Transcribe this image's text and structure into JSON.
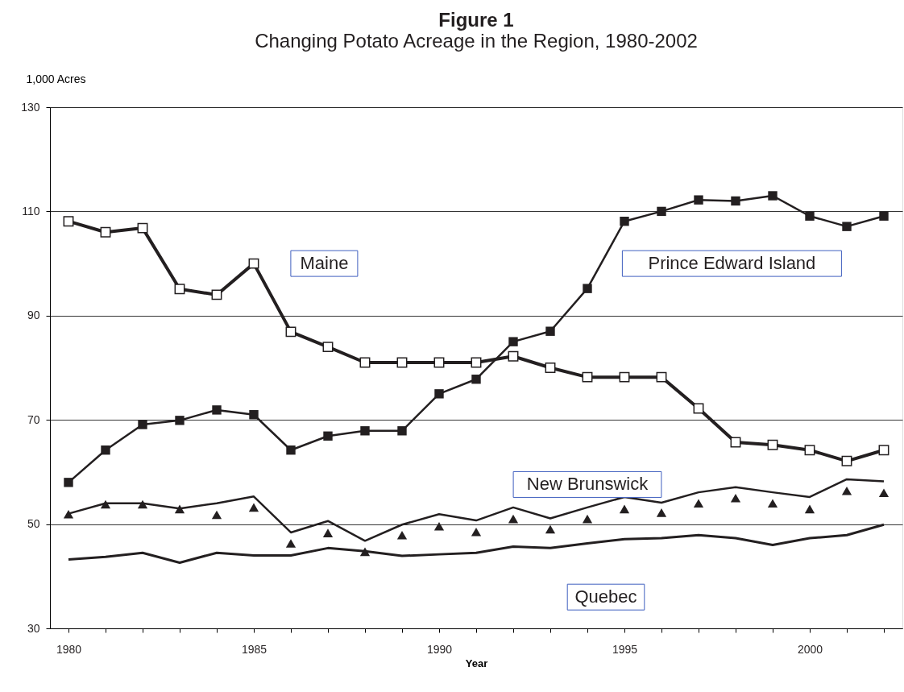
{
  "chart_data": {
    "type": "line",
    "title": "Figure 1",
    "subtitle": "Changing Potato Acreage in the Region, 1980-2002",
    "xlabel": "Year",
    "ylabel": "1,000 Acres",
    "categories": [
      "1980",
      null,
      null,
      null,
      null,
      "1985",
      null,
      null,
      null,
      null,
      "1990",
      null,
      null,
      null,
      null,
      "1995",
      null,
      null,
      null,
      null,
      "2000",
      null,
      null
    ],
    "ylim": [
      30,
      130
    ],
    "yticks": [
      30,
      50,
      70,
      90,
      110,
      130
    ],
    "grid": "y",
    "series": [
      {
        "name": "Maine",
        "color": "#231f20",
        "marker": "square",
        "values": [
          108.1,
          106,
          106.8,
          95.1,
          94,
          100,
          86.9,
          84,
          81,
          81,
          81,
          81,
          82.2,
          80,
          78.2,
          78.2,
          78.2,
          72.2,
          65.7,
          65.2,
          64.2,
          62.1,
          64.2
        ]
      },
      {
        "name": "Prince Edward Island",
        "color": "#231f20",
        "marker": "square",
        "values": [
          58,
          64.2,
          69.1,
          69.9,
          71.9,
          71,
          64.2,
          66.9,
          67.9,
          67.9,
          75,
          77.8,
          85,
          87,
          95.2,
          108.1,
          110,
          112.2,
          112,
          113,
          109.1,
          107.1,
          109.1
        ]
      },
      {
        "name": "New Brunswick",
        "color": "#231f20",
        "marker": "none",
        "values": [
          52,
          54,
          54,
          53,
          54,
          55.3,
          48.4,
          50.6,
          46.8,
          49.9,
          51.9,
          50.7,
          53.2,
          51.1,
          53.2,
          55.2,
          54.1,
          56.1,
          57.1,
          56.1,
          55.2,
          58.6,
          58.2
        ]
      },
      {
        "type": "scatter",
        "color": "#231f20",
        "marker": "triangle",
        "values": [
          51.9,
          53.8,
          53.8,
          52.9,
          51.8,
          53.2,
          46.3,
          48.3,
          44.7,
          47.9,
          49.6,
          48.5,
          51,
          49,
          51,
          52.9,
          52.2,
          54,
          55,
          54,
          52.9,
          56.4,
          56
        ]
      },
      {
        "name": "Quebec",
        "color": "#231f20",
        "marker": "none",
        "values": [
          43.2,
          43.7,
          44.5,
          42.6,
          44.5,
          44,
          44,
          45.4,
          44.8,
          43.9,
          44.2,
          44.5,
          45.7,
          45.4,
          46.3,
          47.1,
          47.3,
          47.9,
          47.3,
          46,
          47.3,
          47.9,
          49.9
        ]
      }
    ]
  }
}
